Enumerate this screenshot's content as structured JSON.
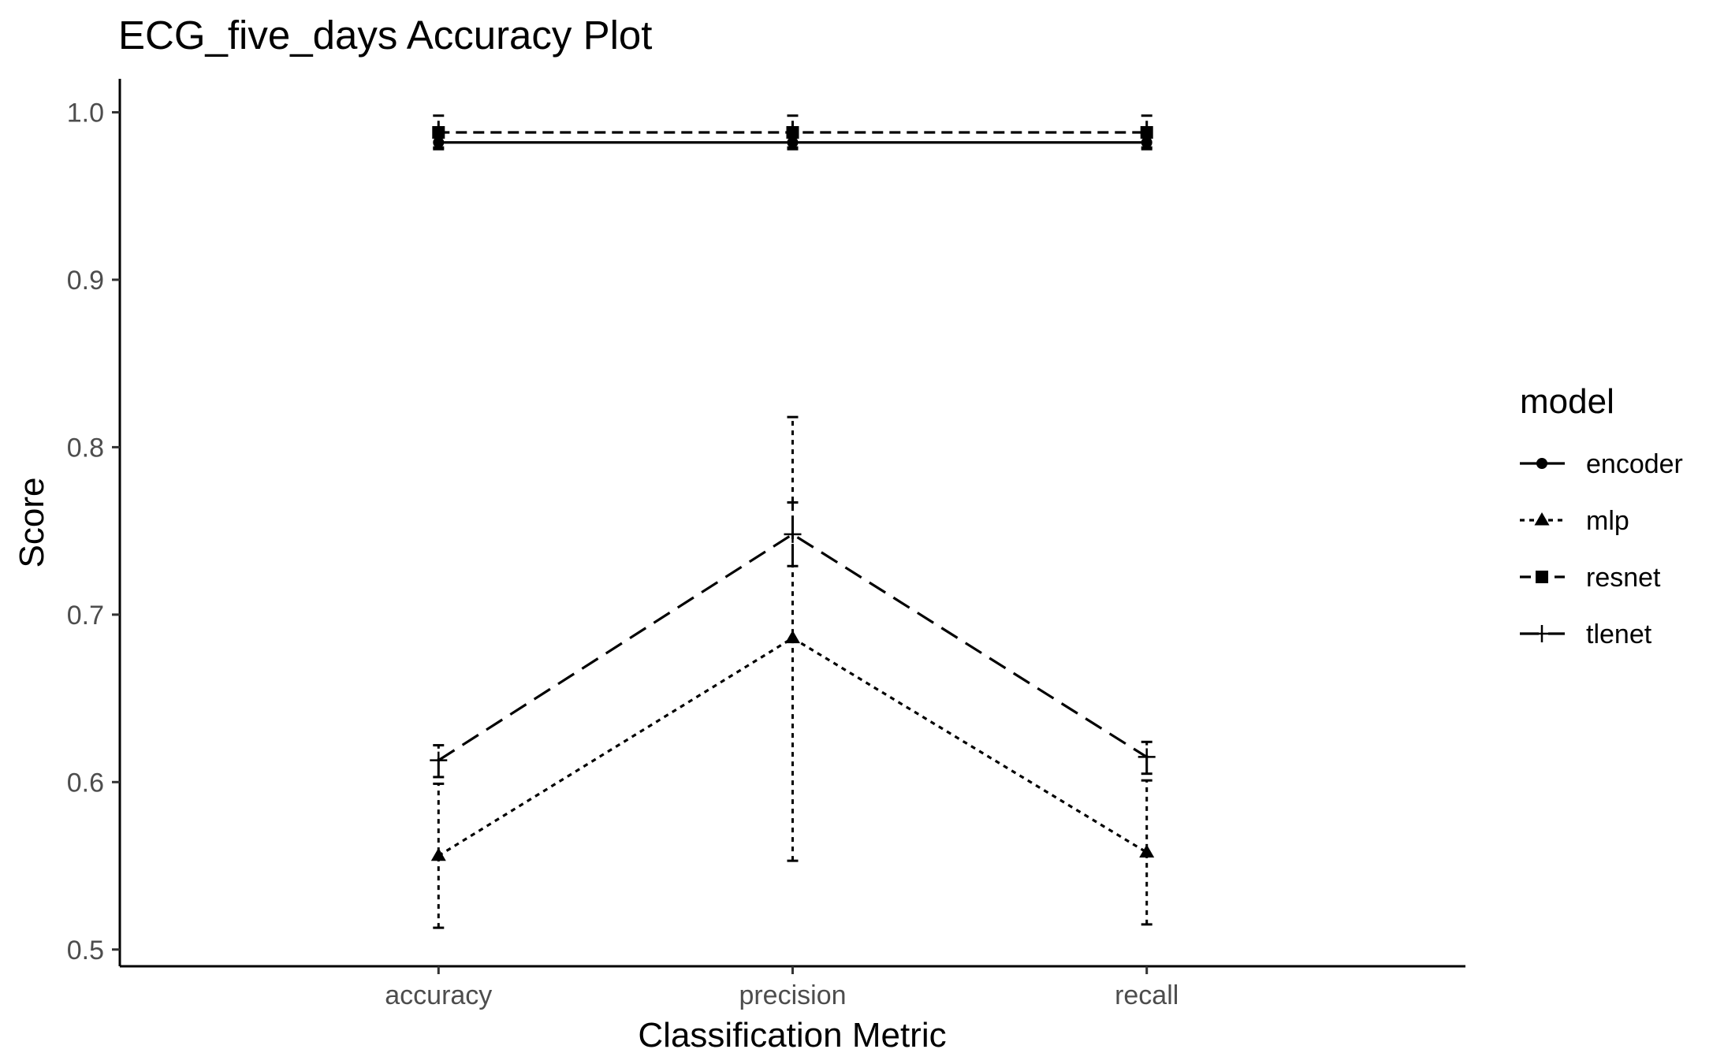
{
  "chart_data": {
    "type": "line",
    "title": "ECG_five_days Accuracy Plot",
    "xlabel": "Classification Metric",
    "ylabel": "Score",
    "categories": [
      "accuracy",
      "precision",
      "recall"
    ],
    "ylim": [
      0.49,
      1.02
    ],
    "yticks": [
      0.5,
      0.6,
      0.7,
      0.8,
      0.9,
      1.0
    ],
    "ytick_labels": [
      "0.5",
      "0.6",
      "0.7",
      "0.8",
      "0.9",
      "1.0"
    ],
    "grid": false,
    "legend": {
      "title": "model",
      "position": "right"
    },
    "series": [
      {
        "name": "encoder",
        "line": "solid",
        "marker": "circle",
        "values": [
          0.982,
          0.982,
          0.982
        ],
        "err_low": [
          0.979,
          0.979,
          0.979
        ],
        "err_high": [
          0.985,
          0.985,
          0.985
        ]
      },
      {
        "name": "mlp",
        "line": "dotted",
        "marker": "triangle",
        "values": [
          0.556,
          0.686,
          0.558
        ],
        "err_low": [
          0.513,
          0.553,
          0.515
        ],
        "err_high": [
          0.599,
          0.818,
          0.601
        ]
      },
      {
        "name": "resnet",
        "line": "dashed",
        "marker": "square",
        "values": [
          0.988,
          0.988,
          0.988
        ],
        "err_low": [
          0.978,
          0.978,
          0.978
        ],
        "err_high": [
          0.998,
          0.998,
          0.998
        ]
      },
      {
        "name": "tlenet",
        "line": "longdash",
        "marker": "plus",
        "values": [
          0.613,
          0.748,
          0.615
        ],
        "err_low": [
          0.603,
          0.729,
          0.605
        ],
        "err_high": [
          0.622,
          0.767,
          0.624
        ]
      }
    ]
  }
}
